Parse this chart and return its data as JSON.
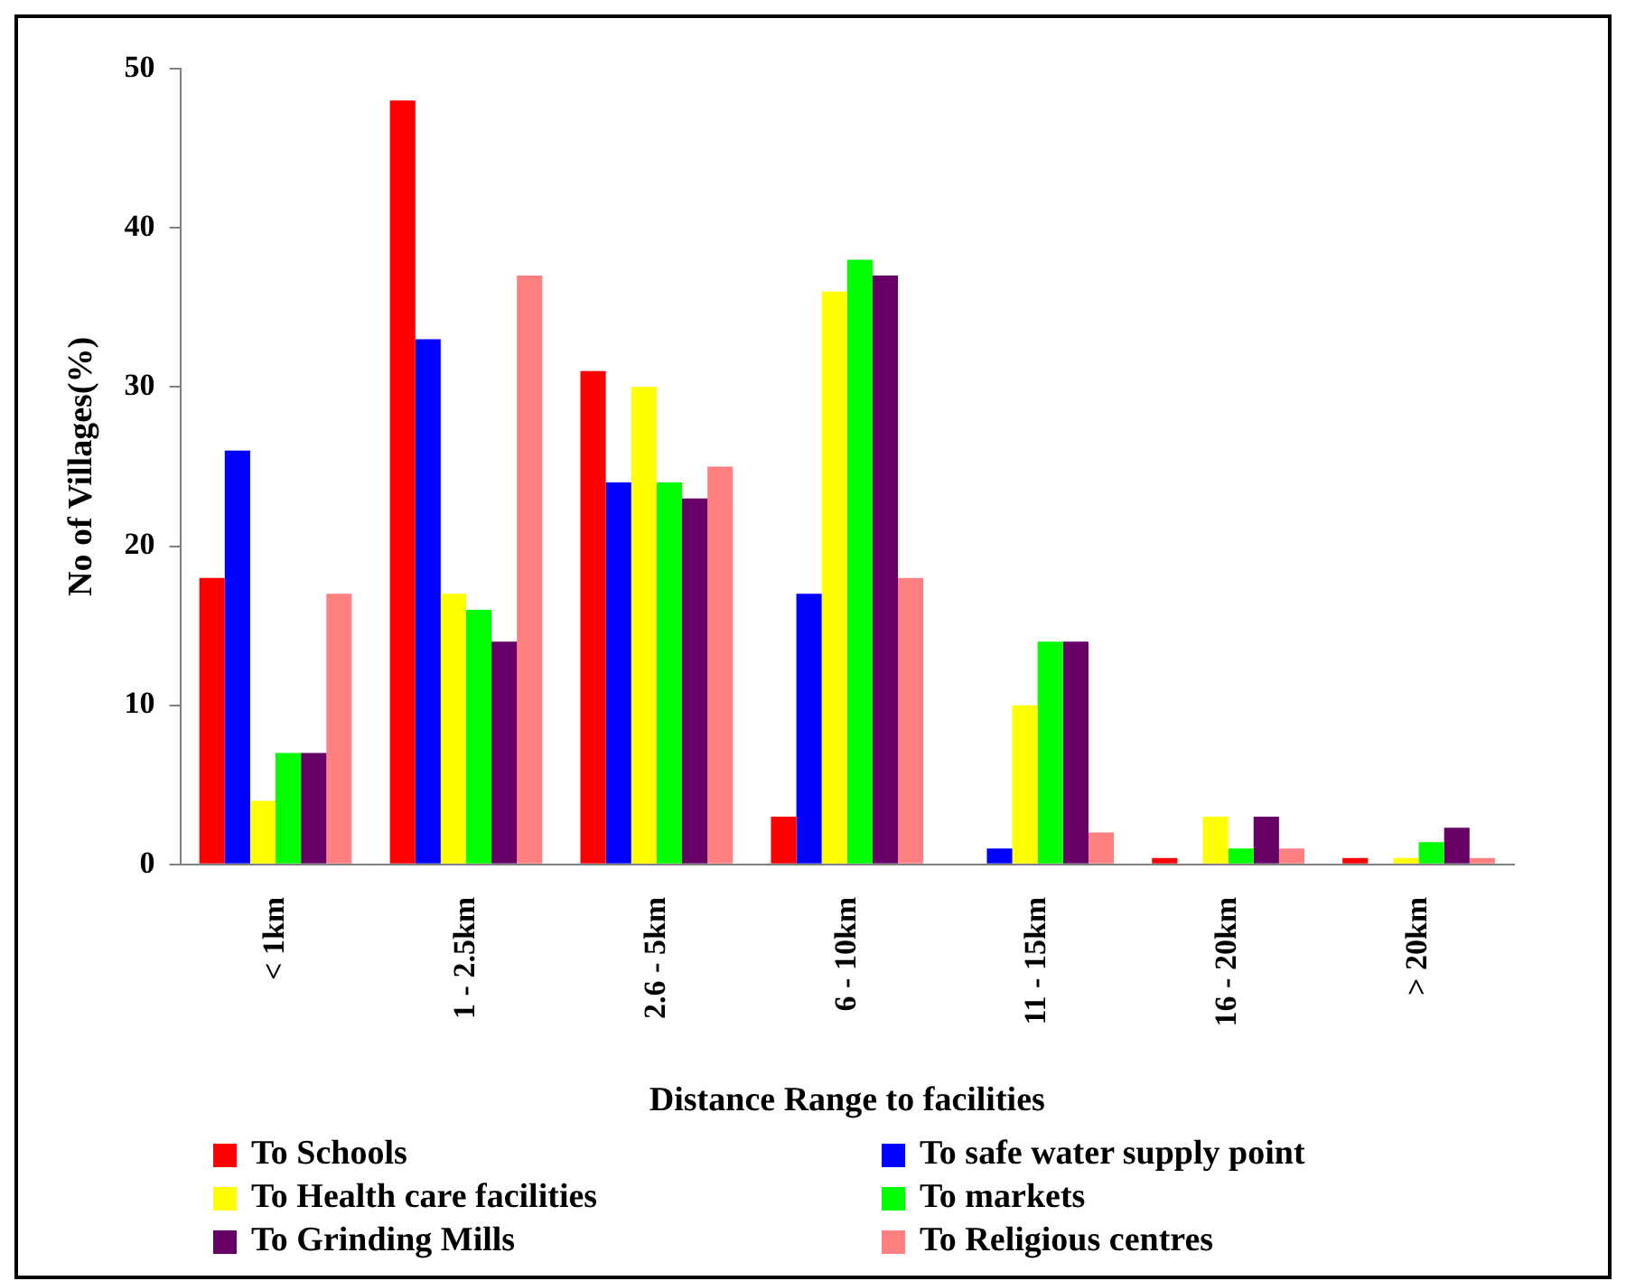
{
  "chart_data": {
    "type": "bar",
    "xlabel": "Distance Range to facilities",
    "ylabel": "No of Villages(%)",
    "categories": [
      "< 1km",
      "1 - 2.5km",
      "2.6 - 5km",
      "6 - 10km",
      "11 - 15km",
      "16 - 20km",
      "> 20km"
    ],
    "series": [
      {
        "name": "To Schools",
        "color": "#ff0000",
        "values": [
          18,
          48,
          31,
          3,
          0,
          0.4,
          0.4
        ]
      },
      {
        "name": "To safe water supply point",
        "color": "#0000ff",
        "values": [
          26,
          33,
          24,
          17,
          1,
          0,
          0
        ]
      },
      {
        "name": "To Health care facilities",
        "color": "#ffff00",
        "values": [
          4,
          17,
          30,
          36,
          10,
          3,
          0.4
        ]
      },
      {
        "name": "To markets",
        "color": "#00ff00",
        "values": [
          7,
          16,
          24,
          38,
          14,
          1,
          1.4
        ]
      },
      {
        "name": "To Grinding Mills",
        "color": "#660066",
        "values": [
          7,
          14,
          23,
          37,
          14,
          3,
          2.3
        ]
      },
      {
        "name": "To Religious centres",
        "color": "#ff8080",
        "values": [
          17,
          37,
          25,
          18,
          2,
          1,
          0.4
        ]
      }
    ],
    "ylim": [
      0,
      50
    ],
    "yticks": [
      0,
      10,
      20,
      30,
      40,
      50
    ],
    "grid": false,
    "legend": "bottom"
  }
}
